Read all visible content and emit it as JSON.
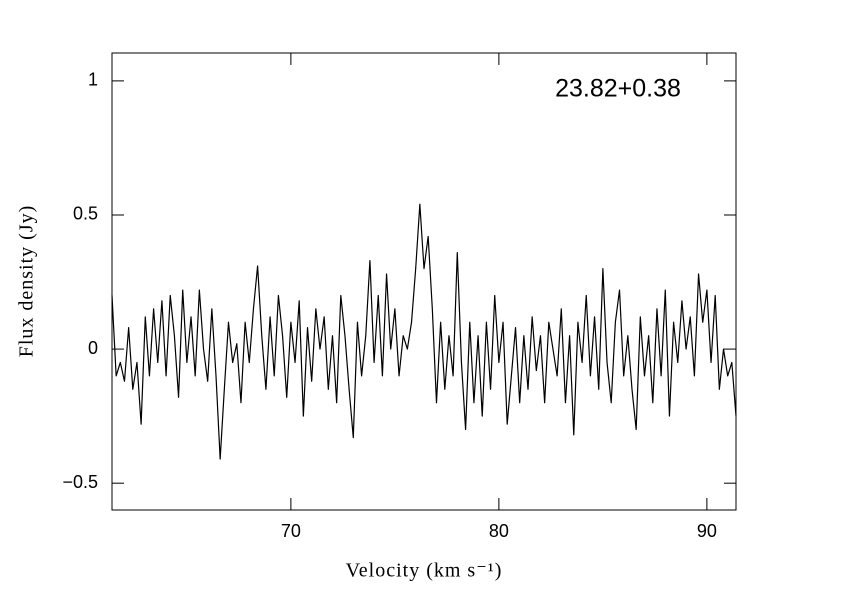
{
  "chart_data": {
    "type": "line",
    "xlabel": "Velocity (km s⁻¹)",
    "ylabel": "Flux density (Jy)",
    "annotation": "23.82+0.38",
    "xlim": [
      61.4,
      91.4
    ],
    "ylim": [
      -0.6,
      1.104
    ],
    "xticks": [
      70,
      80,
      90
    ],
    "yticks": [
      {
        "value": -0.5,
        "label": "−0.5"
      },
      0,
      0.5,
      1
    ],
    "x": [
      61.4,
      61.6,
      61.8,
      62.0,
      62.2,
      62.4,
      62.6,
      62.8,
      63.0,
      63.2,
      63.4,
      63.6,
      63.8,
      64.0,
      64.2,
      64.4,
      64.6,
      64.8,
      65.0,
      65.2,
      65.4,
      65.6,
      65.8,
      66.0,
      66.2,
      66.4,
      66.6,
      66.8,
      67.0,
      67.2,
      67.4,
      67.6,
      67.8,
      68.0,
      68.2,
      68.4,
      68.6,
      68.8,
      69.0,
      69.2,
      69.4,
      69.6,
      69.8,
      70.0,
      70.2,
      70.4,
      70.6,
      70.8,
      71.0,
      71.2,
      71.4,
      71.6,
      71.8,
      72.0,
      72.2,
      72.4,
      72.6,
      72.8,
      73.0,
      73.2,
      73.4,
      73.6,
      73.8,
      74.0,
      74.2,
      74.4,
      74.6,
      74.8,
      75.0,
      75.2,
      75.4,
      75.6,
      75.8,
      76.0,
      76.2,
      76.4,
      76.6,
      76.8,
      77.0,
      77.2,
      77.4,
      77.6,
      77.8,
      78.0,
      78.2,
      78.4,
      78.6,
      78.8,
      79.0,
      79.2,
      79.4,
      79.6,
      79.8,
      80.0,
      80.2,
      80.4,
      80.6,
      80.8,
      81.0,
      81.2,
      81.4,
      81.6,
      81.8,
      82.0,
      82.2,
      82.4,
      82.6,
      82.8,
      83.0,
      83.2,
      83.4,
      83.6,
      83.8,
      84.0,
      84.2,
      84.4,
      84.6,
      84.8,
      85.0,
      85.2,
      85.4,
      85.6,
      85.8,
      86.0,
      86.2,
      86.4,
      86.6,
      86.8,
      87.0,
      87.2,
      87.4,
      87.6,
      87.8,
      88.0,
      88.2,
      88.4,
      88.6,
      88.8,
      89.0,
      89.2,
      89.4,
      89.6,
      89.8,
      90.0,
      90.2,
      90.4,
      90.6,
      90.8,
      91.0,
      91.2,
      91.4
    ],
    "series": [
      {
        "name": "23.82+0.38",
        "color": "#000000",
        "values": [
          0.2,
          -0.1,
          -0.05,
          -0.12,
          0.08,
          -0.15,
          -0.05,
          -0.28,
          0.12,
          -0.1,
          0.15,
          -0.05,
          0.18,
          -0.1,
          0.2,
          0.05,
          -0.18,
          0.22,
          -0.05,
          0.12,
          -0.1,
          0.22,
          0.0,
          -0.12,
          0.15,
          -0.1,
          -0.41,
          -0.15,
          0.1,
          -0.05,
          0.02,
          -0.2,
          0.1,
          -0.05,
          0.15,
          0.31,
          0.05,
          -0.15,
          0.12,
          -0.1,
          0.2,
          0.05,
          -0.18,
          0.1,
          -0.05,
          0.18,
          -0.25,
          0.08,
          -0.12,
          0.15,
          0.0,
          0.12,
          -0.15,
          0.05,
          -0.2,
          0.2,
          0.05,
          -0.15,
          -0.33,
          0.1,
          -0.1,
          0.05,
          0.33,
          -0.05,
          0.2,
          -0.1,
          0.28,
          0.0,
          0.15,
          -0.1,
          0.05,
          0.0,
          0.1,
          0.3,
          0.54,
          0.3,
          0.42,
          0.15,
          -0.2,
          0.1,
          -0.15,
          0.05,
          -0.1,
          0.36,
          -0.05,
          -0.3,
          0.1,
          -0.2,
          0.05,
          -0.25,
          0.1,
          -0.15,
          0.2,
          -0.05,
          0.1,
          -0.28,
          -0.1,
          0.08,
          -0.2,
          0.05,
          -0.15,
          0.12,
          -0.08,
          0.05,
          -0.2,
          0.1,
          0.0,
          -0.1,
          0.15,
          -0.2,
          0.05,
          -0.32,
          0.1,
          -0.05,
          0.2,
          -0.1,
          0.12,
          -0.15,
          0.3,
          -0.05,
          -0.2,
          0.1,
          0.22,
          -0.1,
          0.05,
          -0.15,
          -0.3,
          0.12,
          -0.1,
          0.05,
          -0.2,
          0.15,
          -0.1,
          0.22,
          -0.25,
          0.1,
          -0.05,
          0.18,
          0.0,
          0.12,
          -0.1,
          0.28,
          0.1,
          0.22,
          -0.05,
          0.2,
          -0.15,
          0.0,
          -0.1,
          -0.05,
          -0.25
        ]
      }
    ]
  }
}
